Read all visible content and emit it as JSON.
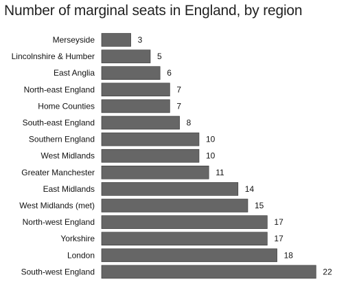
{
  "chart_data": {
    "type": "bar",
    "orientation": "horizontal",
    "title": "Number of marginal seats in England, by region",
    "categories": [
      "Merseyside",
      "Lincolnshire & Humber",
      "East Anglia",
      "North-east England",
      "Home Counties",
      "South-east England",
      "Southern England",
      "West Midlands",
      "Greater Manchester",
      "East Midlands",
      "West Midlands (met)",
      "North-west England",
      "Yorkshire",
      "London",
      "South-west England"
    ],
    "values": [
      3,
      5,
      6,
      7,
      7,
      8,
      10,
      10,
      11,
      14,
      15,
      17,
      17,
      18,
      22
    ],
    "xlim": [
      0,
      22
    ],
    "grid": false,
    "data_labels": true,
    "colors": {
      "bar_fill": "#666666",
      "bar_stroke": "#333333",
      "text": "#111111"
    }
  }
}
